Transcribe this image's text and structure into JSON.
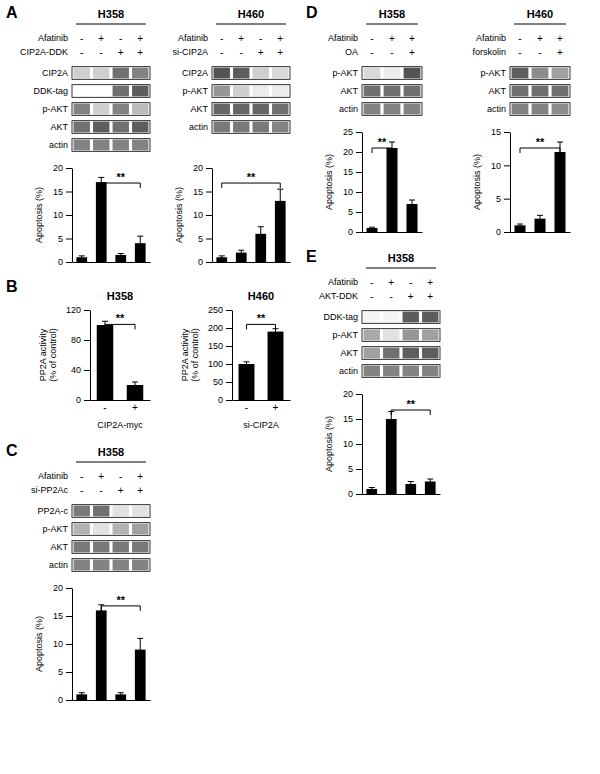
{
  "chart_data": [
    {
      "type": "bar",
      "panel": "A",
      "title": "H358",
      "header_rows": [
        {
          "label": "Afatinib",
          "values": [
            "-",
            "+",
            "-",
            "+"
          ]
        },
        {
          "label": "CIP2A-DDK",
          "values": [
            "-",
            "-",
            "+",
            "+"
          ]
        }
      ],
      "blot": {
        "rows": [
          "CIP2A",
          "DDK-tag",
          "p-AKT",
          "AKT",
          "actin"
        ],
        "values": [
          [
            0.25,
            0.25,
            0.75,
            0.65
          ],
          [
            0.0,
            0.0,
            0.75,
            0.85
          ],
          [
            0.65,
            0.25,
            0.65,
            0.35
          ],
          [
            0.75,
            0.85,
            0.75,
            0.85
          ],
          [
            0.65,
            0.65,
            0.65,
            0.65
          ]
        ]
      },
      "categories": [
        null,
        null,
        null,
        null
      ],
      "values": [
        1,
        17,
        1.5,
        4
      ],
      "errors": [
        0.3,
        1.0,
        0.3,
        1.5
      ],
      "color": "#000000",
      "ylabel": "Apoptosis (%)",
      "ylim": [
        0,
        20
      ],
      "yticks": [
        0,
        5,
        10,
        15,
        20
      ],
      "significance": {
        "between": [
          1,
          3
        ],
        "label": "**"
      }
    },
    {
      "type": "bar",
      "title": "H460",
      "header_rows": [
        {
          "label": "Afatinib",
          "values": [
            "-",
            "+",
            "-",
            "+"
          ]
        },
        {
          "label": "si-CIP2A",
          "values": [
            "-",
            "-",
            "+",
            "+"
          ]
        }
      ],
      "blot": {
        "rows": [
          "CIP2A",
          "p-AKT",
          "AKT",
          "actin"
        ],
        "values": [
          [
            0.9,
            0.85,
            0.25,
            0.2
          ],
          [
            0.55,
            0.25,
            0.1,
            0.1
          ],
          [
            0.8,
            0.8,
            0.8,
            0.75
          ],
          [
            0.7,
            0.7,
            0.7,
            0.65
          ]
        ]
      },
      "categories": [
        null,
        null,
        null,
        null
      ],
      "values": [
        1,
        2,
        6,
        13
      ],
      "errors": [
        0.3,
        0.5,
        1.5,
        2.5
      ],
      "color": "#000000",
      "ylabel": "Apoptosis (%)",
      "ylim": [
        0,
        20
      ],
      "yticks": [
        0,
        5,
        10,
        15,
        20
      ],
      "significance": {
        "between": [
          0,
          3
        ],
        "label": "**"
      }
    },
    {
      "type": "bar",
      "panel": "B",
      "title": "H358",
      "categories": [
        "-",
        "+"
      ],
      "xlabel": "CIP2A-myc",
      "values": [
        100,
        20
      ],
      "errors": [
        5,
        4
      ],
      "color": "#000000",
      "ylabel": "PP2A activity\n(% of control)",
      "ylim": [
        0,
        120
      ],
      "yticks": [
        0,
        40,
        80,
        120
      ],
      "significance": {
        "between": [
          0,
          1
        ],
        "label": "**"
      }
    },
    {
      "type": "bar",
      "title": "H460",
      "categories": [
        "-",
        "+"
      ],
      "xlabel": "si-CIP2A",
      "values": [
        100,
        190
      ],
      "errors": [
        6,
        8
      ],
      "color": "#000000",
      "ylabel": "PP2A activity\n(% of control)",
      "ylim": [
        0,
        250
      ],
      "yticks": [
        0,
        50,
        100,
        150,
        200,
        250
      ],
      "significance": {
        "between": [
          0,
          1
        ],
        "label": "**"
      }
    },
    {
      "type": "bar",
      "panel": "C",
      "title": "H358",
      "header_rows": [
        {
          "label": "Afatinib",
          "values": [
            "-",
            "+",
            "-",
            "+"
          ]
        },
        {
          "label": "si-PP2Ac",
          "values": [
            "-",
            "-",
            "+",
            "+"
          ]
        }
      ],
      "blot": {
        "rows": [
          "PP2A-c",
          "p-AKT",
          "AKT",
          "actin"
        ],
        "values": [
          [
            0.7,
            0.75,
            0.15,
            0.15
          ],
          [
            0.4,
            0.15,
            0.4,
            0.5
          ],
          [
            0.7,
            0.7,
            0.7,
            0.7
          ],
          [
            0.65,
            0.65,
            0.65,
            0.65
          ]
        ]
      },
      "categories": [
        null,
        null,
        null,
        null
      ],
      "values": [
        1,
        16,
        1,
        9
      ],
      "errors": [
        0.3,
        1.0,
        0.3,
        2.0
      ],
      "color": "#000000",
      "ylabel": "Apoptosis (%)",
      "ylim": [
        0,
        20
      ],
      "yticks": [
        0,
        5,
        10,
        15,
        20
      ],
      "significance": {
        "between": [
          1,
          3
        ],
        "label": "**"
      }
    },
    {
      "type": "bar",
      "panel": "D",
      "title": "H358",
      "header_rows": [
        {
          "label": "Afatinib",
          "values": [
            "-",
            "+",
            "+"
          ]
        },
        {
          "label": "OA",
          "values": [
            "-",
            "-",
            "+"
          ]
        }
      ],
      "blot": {
        "rows": [
          "p-AKT",
          "AKT",
          "actin"
        ],
        "values": [
          [
            0.2,
            0.1,
            0.9
          ],
          [
            0.75,
            0.75,
            0.75
          ],
          [
            0.65,
            0.65,
            0.65
          ]
        ]
      },
      "categories": [
        null,
        null,
        null
      ],
      "values": [
        1,
        21,
        7
      ],
      "errors": [
        0.2,
        1.5,
        1.0
      ],
      "color": "#000000",
      "ylabel": "Apoptosis (%)",
      "ylim": [
        0,
        25
      ],
      "yticks": [
        0,
        5,
        10,
        15,
        20,
        25
      ],
      "significance": {
        "between": [
          0,
          1
        ],
        "label": "**"
      }
    },
    {
      "type": "bar",
      "title": "H460",
      "header_rows": [
        {
          "label": "Afatinib",
          "values": [
            "-",
            "+",
            "+"
          ]
        },
        {
          "label": "forskolin",
          "values": [
            "-",
            "-",
            "+"
          ]
        }
      ],
      "blot": {
        "rows": [
          "p-AKT",
          "AKT",
          "actin"
        ],
        "values": [
          [
            0.85,
            0.6,
            0.5
          ],
          [
            0.75,
            0.75,
            0.75
          ],
          [
            0.65,
            0.65,
            0.6
          ]
        ]
      },
      "categories": [
        null,
        null,
        null
      ],
      "values": [
        1,
        2,
        12
      ],
      "errors": [
        0.2,
        0.5,
        1.5
      ],
      "color": "#000000",
      "ylabel": "Apoptosis (%)",
      "ylim": [
        0,
        15
      ],
      "yticks": [
        0,
        5,
        10,
        15
      ],
      "significance": {
        "between": [
          0,
          2
        ],
        "label": "**"
      }
    },
    {
      "type": "bar",
      "panel": "E",
      "title": "H358",
      "header_rows": [
        {
          "label": "Afatinib",
          "values": [
            "-",
            "+",
            "-",
            "+"
          ]
        },
        {
          "label": "AKT-DDK",
          "values": [
            "-",
            "-",
            "+",
            "+"
          ]
        }
      ],
      "blot": {
        "rows": [
          "DDK-tag",
          "p-AKT",
          "AKT",
          "actin"
        ],
        "values": [
          [
            0.05,
            0.05,
            0.85,
            0.85
          ],
          [
            0.45,
            0.15,
            0.55,
            0.5
          ],
          [
            0.5,
            0.75,
            0.85,
            0.85
          ],
          [
            0.65,
            0.65,
            0.65,
            0.65
          ]
        ]
      },
      "categories": [
        null,
        null,
        null,
        null
      ],
      "values": [
        1,
        15,
        2,
        2.5
      ],
      "errors": [
        0.3,
        1.5,
        0.5,
        0.5
      ],
      "color": "#000000",
      "ylabel": "Apoptosis (%)",
      "ylim": [
        0,
        20
      ],
      "yticks": [
        0,
        5,
        10,
        15,
        20
      ],
      "significance": {
        "between": [
          1,
          3
        ],
        "label": "**"
      }
    }
  ]
}
